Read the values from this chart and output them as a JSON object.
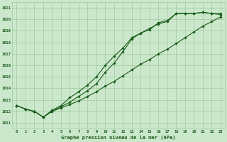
{
  "xlabel": "Graphe pression niveau de la mer (hPa)",
  "x_ticks": [
    0,
    1,
    2,
    3,
    4,
    5,
    6,
    7,
    8,
    9,
    10,
    11,
    12,
    13,
    14,
    15,
    16,
    17,
    18,
    19,
    20,
    21,
    22,
    23
  ],
  "ylim": [
    1010.5,
    1021.5
  ],
  "xlim": [
    -0.5,
    23.5
  ],
  "yticks": [
    1011,
    1012,
    1013,
    1014,
    1015,
    1016,
    1017,
    1018,
    1019,
    1020,
    1021
  ],
  "line1": {
    "x": [
      0,
      1,
      2,
      3,
      4,
      5,
      6,
      7,
      8,
      9,
      10,
      11,
      12,
      13,
      14,
      15,
      16,
      17,
      18,
      19,
      20,
      21,
      22,
      23
    ],
    "y": [
      1012.5,
      1012.2,
      1012.0,
      1011.5,
      1012.0,
      1012.3,
      1012.6,
      1012.9,
      1013.3,
      1013.7,
      1014.2,
      1014.6,
      1015.1,
      1015.6,
      1016.1,
      1016.5,
      1017.0,
      1017.4,
      1017.9,
      1018.4,
      1018.9,
      1019.4,
      1019.8,
      1020.2
    ]
  },
  "line2": {
    "x": [
      0,
      1,
      2,
      3,
      4,
      5,
      6,
      7,
      8,
      9,
      10,
      11,
      12,
      13,
      14,
      15,
      16,
      17,
      18,
      19,
      20,
      21,
      22,
      23
    ],
    "y": [
      1012.5,
      1012.2,
      1012.0,
      1011.5,
      1012.1,
      1012.5,
      1013.2,
      1013.7,
      1014.3,
      1015.0,
      1016.0,
      1016.8,
      1017.5,
      1018.4,
      1018.8,
      1019.2,
      1019.6,
      1019.8,
      1020.5,
      1020.5,
      1020.5,
      1020.6,
      1020.5,
      1020.5
    ]
  },
  "line3": {
    "x": [
      0,
      1,
      2,
      3,
      4,
      5,
      6,
      7,
      8,
      9,
      10,
      11,
      12,
      13,
      14,
      15,
      16,
      17,
      18,
      19,
      20,
      21,
      22,
      23
    ],
    "y": [
      1012.5,
      1012.2,
      1012.0,
      1011.5,
      1012.0,
      1012.4,
      1012.8,
      1013.3,
      1013.8,
      1014.4,
      1015.4,
      1016.2,
      1017.2,
      1018.3,
      1018.8,
      1019.1,
      1019.7,
      1019.9,
      1020.5,
      1020.5,
      1020.5,
      1020.6,
      1020.5,
      1020.4
    ]
  },
  "line_color": "#1a5c1a",
  "bg_color": "#cce8cc",
  "grid_color": "#9ecb9e",
  "tick_label_color": "#1a5c1a",
  "xlabel_color": "#1a5c1a",
  "marker": "D",
  "markersize": 1.8,
  "linewidth": 0.8
}
